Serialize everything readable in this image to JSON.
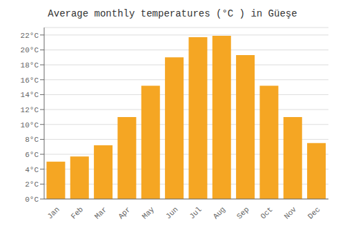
{
  "chart_data": {
    "type": "bar",
    "title": "Average monthly temperatures (°C ) in Güeşe",
    "categories": [
      "Jan",
      "Feb",
      "Mar",
      "Apr",
      "May",
      "Jun",
      "Jul",
      "Aug",
      "Sep",
      "Oct",
      "Nov",
      "Dec"
    ],
    "values": [
      5.0,
      5.7,
      7.2,
      11.0,
      15.2,
      19.0,
      21.7,
      21.9,
      19.3,
      15.2,
      11.0,
      7.5
    ],
    "color": "#F5A623",
    "ylim": [
      0,
      23
    ],
    "yticks": [
      {
        "value": 0,
        "label": "0°C"
      },
      {
        "value": 2,
        "label": "2°C"
      },
      {
        "value": 4,
        "label": "4°C"
      },
      {
        "value": 6,
        "label": "6°C"
      },
      {
        "value": 8,
        "label": "8°C"
      },
      {
        "value": 10,
        "label": "10°C"
      },
      {
        "value": 12,
        "label": "12°C"
      },
      {
        "value": 14,
        "label": "14°C"
      },
      {
        "value": 16,
        "label": "16°C"
      },
      {
        "value": 18,
        "label": "18°C"
      },
      {
        "value": 20,
        "label": "20°C"
      },
      {
        "value": 22,
        "label": "22°C"
      }
    ],
    "grid": true
  }
}
